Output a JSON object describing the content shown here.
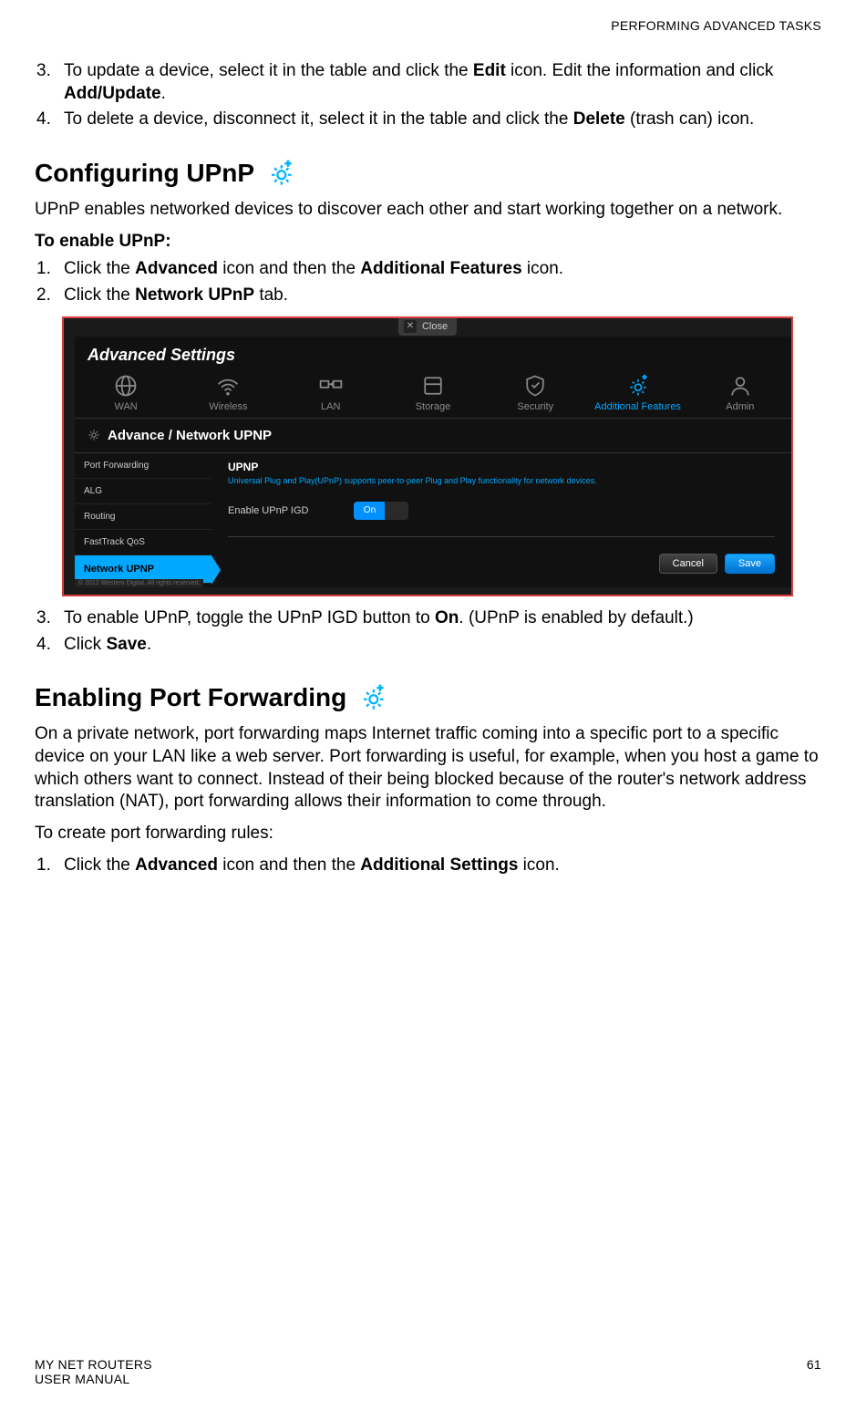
{
  "header": {
    "section_name": "PERFORMING ADVANCED TASKS"
  },
  "top_list": [
    {
      "num": "3.",
      "parts": [
        "To update a device, select it in the table and click the ",
        {
          "b": "Edit"
        },
        " icon. Edit the information and click ",
        {
          "b": "Add/Update"
        },
        "."
      ]
    },
    {
      "num": "4.",
      "parts": [
        "To delete a device, disconnect it, select it in the table and click the ",
        {
          "b": "Delete"
        },
        " (trash can) icon."
      ]
    }
  ],
  "upnp": {
    "heading": "Configuring UPnP",
    "intro": "UPnP enables networked devices to discover each other and start working together on a network.",
    "lead": "To enable UPnP:",
    "steps_a": [
      {
        "num": "1.",
        "parts": [
          "Click the ",
          {
            "b": "Advanced"
          },
          " icon and then the ",
          {
            "b": "Additional Features"
          },
          " icon."
        ]
      },
      {
        "num": "2.",
        "parts": [
          "Click the ",
          {
            "b": "Network UPnP"
          },
          " tab."
        ]
      }
    ],
    "steps_b": [
      {
        "num": "3.",
        "parts": [
          "To enable UPnP, toggle the UPnP IGD button to ",
          {
            "b": "On"
          },
          ". (UPnP is enabled by default.)"
        ]
      },
      {
        "num": "4.",
        "parts": [
          "Click ",
          {
            "b": "Save"
          },
          "."
        ]
      }
    ]
  },
  "portfwd": {
    "heading": "Enabling Port Forwarding",
    "intro": "On a private network, port forwarding maps Internet traffic coming into a specific port to a specific device on your LAN like a web server. Port forwarding is useful, for example, when you host a game to which others want to connect. Instead of their being blocked because of the router's network address translation (NAT), port forwarding allows their information to come through.",
    "lead": "To create port forwarding rules:",
    "steps": [
      {
        "num": "1.",
        "parts": [
          "Click the ",
          {
            "b": "Advanced"
          },
          " icon and then the ",
          {
            "b": "Additional Settings"
          },
          " icon."
        ]
      }
    ]
  },
  "screenshot": {
    "close": "Close",
    "title": "Advanced Settings",
    "nav": [
      {
        "label": "WAN",
        "icon": "globe",
        "active": false
      },
      {
        "label": "Wireless",
        "icon": "wifi",
        "active": false
      },
      {
        "label": "LAN",
        "icon": "lan",
        "active": false
      },
      {
        "label": "Storage",
        "icon": "storage",
        "active": false
      },
      {
        "label": "Security",
        "icon": "shield",
        "active": false
      },
      {
        "label": "Additional Features",
        "icon": "gearplus",
        "active": true
      },
      {
        "label": "Admin",
        "icon": "person",
        "active": false
      }
    ],
    "breadcrumb": "Advance / Network UPNP",
    "side": [
      {
        "label": "Port Forwarding",
        "active": false
      },
      {
        "label": "ALG",
        "active": false
      },
      {
        "label": "Routing",
        "active": false
      },
      {
        "label": "FastTrack QoS",
        "active": false
      },
      {
        "label": "Network UPNP",
        "active": true
      }
    ],
    "content": {
      "title": "UPNP",
      "desc": "Universal Plug and Play(UPnP) supports peer-to-peer Plug and Play functionality for network devices.",
      "row_label": "Enable UPnP IGD",
      "toggle_on": "On",
      "cancel": "Cancel",
      "save": "Save"
    },
    "copyright": "© 2012 Western Digital. All rights reserved."
  },
  "footer": {
    "left1": "MY NET ROUTERS",
    "left2": "USER MANUAL",
    "page": "61"
  },
  "colors": {
    "accent": "#00a8ff",
    "frame": "#d84040"
  }
}
